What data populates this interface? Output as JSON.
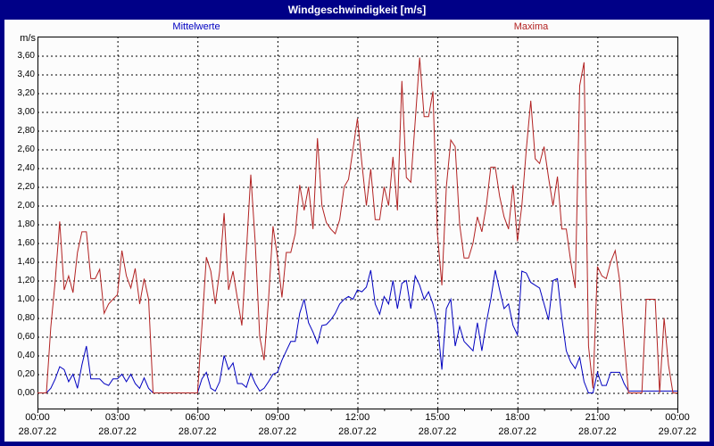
{
  "window": {
    "title": "Windgeschwindigkeit [m/s]"
  },
  "legend": {
    "mean_label": "Mittelwerte",
    "max_label": "Maxima"
  },
  "colors": {
    "frame": "#000087",
    "title_text": "#ffffff",
    "panel_bg": "#fcfcfc",
    "grid": "#000000",
    "axis": "#000000",
    "mean_line": "#0000c0",
    "max_line": "#b22222"
  },
  "chart_data": {
    "type": "line",
    "title": "Windgeschwindigkeit [m/s]",
    "ylabel": "m/s",
    "ylim": [
      0.0,
      3.6
    ],
    "ytick_step": 0.2,
    "ytick_labels": [
      "0,00",
      "0,20",
      "0,40",
      "0,60",
      "0,80",
      "1,00",
      "1,20",
      "1,40",
      "1,60",
      "1,80",
      "2,00",
      "2,20",
      "2,40",
      "2,60",
      "2,80",
      "3,00",
      "3,20",
      "3,40",
      "3,60"
    ],
    "grid": "dashed",
    "legend_position": "top",
    "x_hours_range": [
      0,
      24
    ],
    "sample_interval_minutes": 10,
    "xticks": [
      {
        "time": "00:00",
        "date": "28.07.22"
      },
      {
        "time": "03:00",
        "date": "28.07.22"
      },
      {
        "time": "06:00",
        "date": "28.07.22"
      },
      {
        "time": "09:00",
        "date": "28.07.22"
      },
      {
        "time": "12:00",
        "date": "28.07.22"
      },
      {
        "time": "15:00",
        "date": "28.07.22"
      },
      {
        "time": "18:00",
        "date": "28.07.22"
      },
      {
        "time": "21:00",
        "date": "28.07.22"
      },
      {
        "time": "00:00",
        "date": "29.07.22"
      }
    ],
    "series": [
      {
        "name": "Mittelwerte",
        "color": "#0000c0",
        "values": [
          0,
          0,
          0,
          0.05,
          0.15,
          0.28,
          0.25,
          0.12,
          0.2,
          0.05,
          0.3,
          0.5,
          0.15,
          0.15,
          0.15,
          0.1,
          0.08,
          0.15,
          0.15,
          0.2,
          0.12,
          0.2,
          0.1,
          0.05,
          0.16,
          0.05,
          0,
          0,
          0,
          0,
          0,
          0,
          0,
          0,
          0,
          0,
          0,
          0.15,
          0.22,
          0.05,
          0.02,
          0.12,
          0.4,
          0.25,
          0.32,
          0.1,
          0.1,
          0.06,
          0.21,
          0.1,
          0.02,
          0.05,
          0.12,
          0.2,
          0.22,
          0.35,
          0.45,
          0.55,
          0.55,
          0.85,
          1.0,
          0.75,
          0.65,
          0.53,
          0.72,
          0.73,
          0.78,
          0.85,
          0.95,
          1.0,
          1.03,
          1.0,
          1.1,
          1.08,
          1.13,
          1.31,
          0.95,
          0.84,
          1.03,
          0.95,
          1.2,
          0.9,
          1.17,
          1.2,
          0.9,
          1.25,
          1.15,
          1.0,
          1.08,
          0.95,
          0.75,
          0.25,
          0.9,
          1.0,
          0.5,
          0.71,
          0.55,
          0.5,
          0.45,
          0.75,
          0.45,
          0.75,
          1.0,
          1.31,
          1.1,
          0.9,
          0.95,
          0.72,
          0.62,
          1.3,
          1.28,
          1.18,
          1.15,
          1.12,
          0.95,
          0.78,
          1.2,
          1.22,
          0.8,
          0.45,
          0.33,
          0.26,
          0.38,
          0.12,
          0,
          0,
          0.22,
          0.08,
          0.08,
          0.22,
          0.22,
          0.22,
          0.1,
          0.02,
          0.02,
          0.02,
          0.02,
          0.02,
          0.02,
          0.02,
          0.02,
          0.02,
          0.02,
          0.02,
          0.02
        ]
      },
      {
        "name": "Maxima",
        "color": "#b22222",
        "values": [
          0,
          0,
          0,
          0.7,
          1.2,
          1.83,
          1.1,
          1.25,
          1.07,
          1.5,
          1.72,
          1.72,
          1.22,
          1.22,
          1.32,
          0.85,
          0.95,
          1.0,
          1.05,
          1.52,
          1.25,
          1.12,
          1.33,
          0.95,
          1.22,
          1.0,
          0,
          0,
          0,
          0,
          0,
          0,
          0,
          0,
          0,
          0,
          0,
          0.7,
          1.45,
          1.3,
          0.95,
          1.3,
          1.92,
          1.1,
          1.3,
          1.0,
          0.72,
          1.5,
          2.33,
          1.6,
          0.6,
          0.35,
          1.0,
          1.78,
          1.45,
          1.02,
          1.5,
          1.5,
          1.7,
          2.22,
          1.95,
          2.2,
          1.75,
          2.72,
          2.0,
          1.82,
          1.75,
          1.7,
          1.85,
          2.2,
          2.28,
          2.6,
          2.93,
          2.45,
          2.0,
          2.39,
          1.85,
          1.85,
          2.2,
          2.0,
          2.52,
          1.95,
          3.33,
          2.3,
          2.25,
          2.9,
          3.58,
          2.95,
          2.95,
          3.22,
          1.7,
          1.15,
          2.2,
          2.7,
          2.63,
          1.8,
          1.44,
          1.44,
          1.6,
          1.88,
          1.72,
          2.0,
          2.41,
          2.41,
          2.1,
          1.88,
          1.75,
          2.22,
          1.62,
          2.0,
          2.6,
          3.12,
          2.5,
          2.45,
          2.63,
          2.3,
          2.0,
          2.31,
          1.75,
          1.75,
          1.4,
          1.12,
          3.28,
          3.53,
          0.5,
          0.05,
          1.35,
          1.25,
          1.22,
          1.4,
          1.52,
          1.2,
          0.55,
          0,
          0,
          0,
          0,
          1.0,
          1.0,
          1.0,
          0,
          0.8,
          0.3,
          0,
          0
        ]
      }
    ]
  }
}
